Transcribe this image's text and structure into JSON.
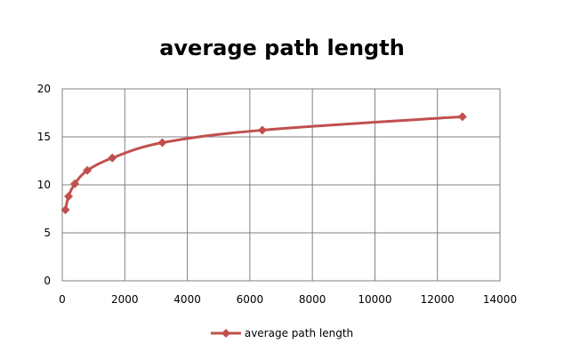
{
  "chart_data": {
    "type": "line",
    "title": "average path length",
    "xlabel": "",
    "ylabel": "",
    "xlim": [
      0,
      14000
    ],
    "ylim": [
      0,
      20
    ],
    "x_ticks": [
      "0",
      "2000",
      "4000",
      "6000",
      "8000",
      "10000",
      "12000",
      "14000"
    ],
    "y_ticks": [
      "0",
      "5",
      "10",
      "15",
      "20"
    ],
    "grid": true,
    "legend_position": "bottom",
    "series": [
      {
        "name": "average path length",
        "color": "#c0504d",
        "points": [
          {
            "x": 100,
            "y": 7.4
          },
          {
            "x": 200,
            "y": 8.8
          },
          {
            "x": 400,
            "y": 10.1
          },
          {
            "x": 800,
            "y": 11.5
          },
          {
            "x": 1600,
            "y": 12.8
          },
          {
            "x": 3200,
            "y": 14.4
          },
          {
            "x": 6400,
            "y": 15.7
          },
          {
            "x": 12800,
            "y": 17.1
          }
        ]
      }
    ]
  }
}
